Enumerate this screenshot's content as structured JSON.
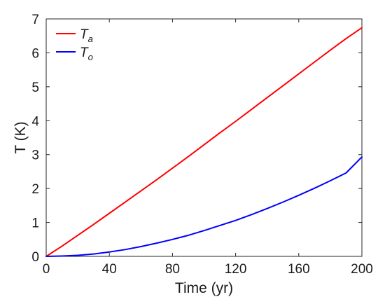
{
  "chart_data": {
    "type": "line",
    "title": "",
    "xlabel": "Time (yr)",
    "ylabel": "T (K)",
    "xlim": [
      0,
      200
    ],
    "ylim": [
      0,
      7
    ],
    "xticks": [
      0,
      40,
      80,
      120,
      160,
      200
    ],
    "yticks": [
      0,
      1,
      2,
      3,
      4,
      5,
      6,
      7
    ],
    "xtick_labels": [
      "0",
      "40",
      "80",
      "120",
      "160",
      "200"
    ],
    "ytick_labels": [
      "0",
      "1",
      "2",
      "3",
      "4",
      "5",
      "6",
      "7"
    ],
    "grid": false,
    "legend_position": "top-left",
    "x": [
      0,
      10,
      20,
      30,
      40,
      50,
      60,
      70,
      80,
      90,
      100,
      110,
      120,
      130,
      140,
      150,
      160,
      170,
      180,
      190,
      200
    ],
    "series": [
      {
        "name": "Ta",
        "name_main": "T",
        "name_sub": "a",
        "color": "#ff0000",
        "values": [
          0.0,
          0.3,
          0.62,
          0.94,
          1.27,
          1.6,
          1.93,
          2.26,
          2.6,
          2.94,
          3.29,
          3.64,
          3.98,
          4.33,
          4.68,
          5.03,
          5.38,
          5.73,
          6.08,
          6.42,
          6.74
        ]
      },
      {
        "name": "To",
        "name_main": "T",
        "name_sub": "o",
        "color": "#0000ff",
        "values": [
          0.0,
          0.01,
          0.03,
          0.07,
          0.13,
          0.2,
          0.29,
          0.39,
          0.5,
          0.62,
          0.76,
          0.91,
          1.06,
          1.23,
          1.41,
          1.6,
          1.8,
          2.01,
          2.23,
          2.46,
          2.93
        ]
      }
    ]
  }
}
